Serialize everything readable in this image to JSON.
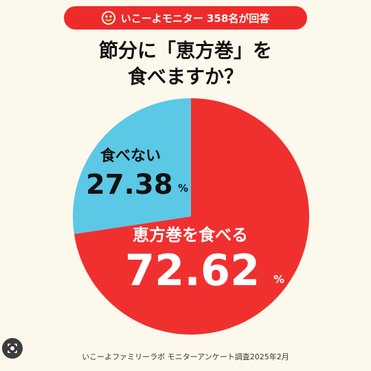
{
  "header": {
    "badge_text": "いこーよモニター 358名が回答",
    "badge_icon": "smiley-face-icon"
  },
  "title_lines": [
    "節分に「恵方巻」を",
    "食べますか？"
  ],
  "chart_data": {
    "type": "pie",
    "title": "節分に「恵方巻」を食べますか？",
    "slices": [
      {
        "label": "恵方巻を食べる",
        "value": 72.62,
        "display": "72.62",
        "unit": "%",
        "color": "#f0302f"
      },
      {
        "label": "食べない",
        "value": 27.38,
        "display": "27.38",
        "unit": "%",
        "color": "#5bc8e6"
      }
    ],
    "start": "12 o'clock",
    "direction": "clockwise",
    "legend": "none"
  },
  "footer": "いこーよファミリーラボ モニターアンケート調査2025年2月",
  "lens_icon": "lens-search-icon",
  "colors": {
    "badge": "#ee2b2b",
    "background": "#fdf8ec"
  }
}
